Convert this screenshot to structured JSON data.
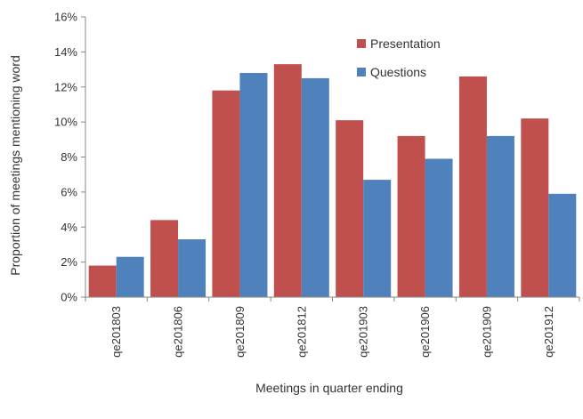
{
  "chart_data": {
    "type": "bar",
    "title": "",
    "xlabel": "Meetings in quarter ending",
    "ylabel": "Proportion of meetings mentioning word",
    "categories": [
      "qe201803",
      "qe201806",
      "qe201809",
      "qe201812",
      "qe201903",
      "qe201906",
      "qe201909",
      "qe201912"
    ],
    "series": [
      {
        "name": "Presentation",
        "color": "#c0504d",
        "values": [
          1.8,
          4.4,
          11.8,
          13.3,
          10.1,
          9.2,
          12.6,
          10.2
        ]
      },
      {
        "name": "Questions",
        "color": "#4f81bd",
        "values": [
          2.3,
          3.3,
          12.8,
          12.5,
          6.7,
          7.9,
          9.2,
          5.9
        ]
      }
    ],
    "ylim": [
      0,
      16
    ],
    "yticks": [
      0,
      2,
      4,
      6,
      8,
      10,
      12,
      14,
      16
    ],
    "ytick_format": "{v}%",
    "grid": false,
    "legend_position": "top-right"
  }
}
